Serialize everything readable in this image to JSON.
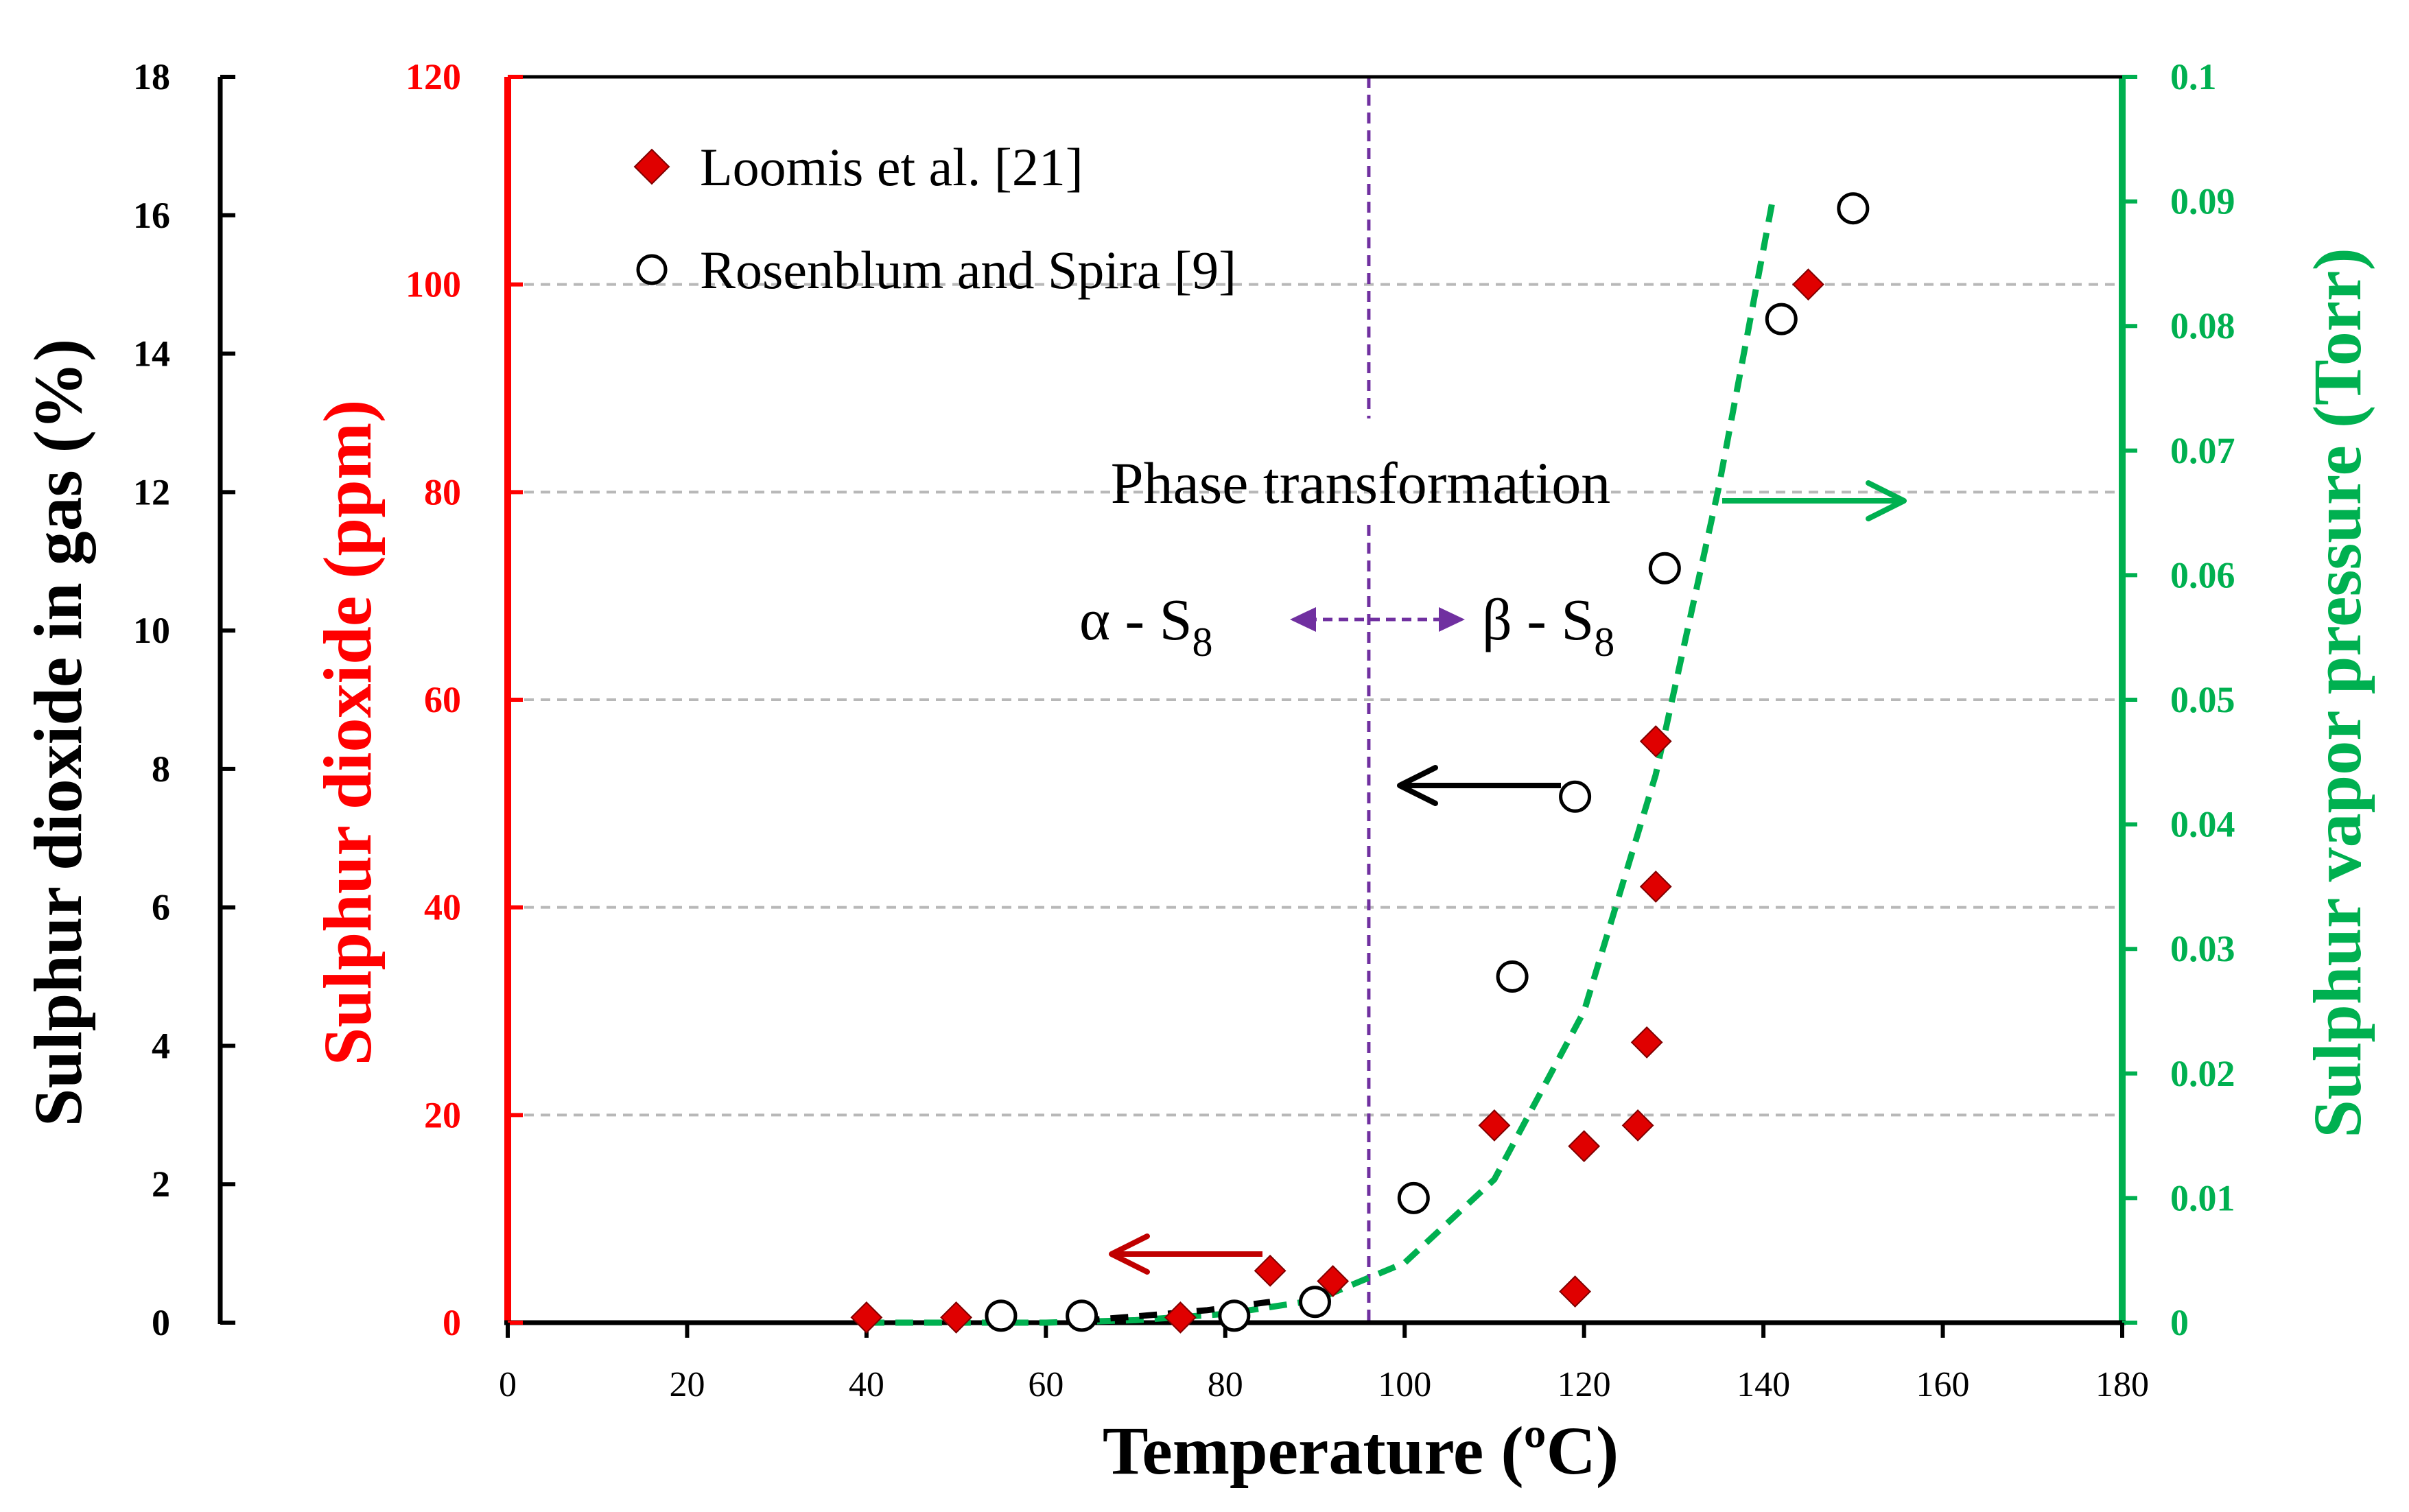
{
  "chart_data": {
    "type": "scatter",
    "xlabel": "Temperature (ºC)",
    "x_ticks": [
      "0",
      "20",
      "40",
      "60",
      "80",
      "100",
      "120",
      "140",
      "160",
      "180"
    ],
    "xlim": [
      0,
      180
    ],
    "y_axes": {
      "outer_left": {
        "label": "Sulphur dioxide in gas (%)",
        "ylim": [
          0,
          18
        ],
        "ticks": [
          "0",
          "2",
          "4",
          "6",
          "8",
          "10",
          "12",
          "14",
          "16",
          "18"
        ],
        "color": "#000000"
      },
      "left": {
        "label": "Sulphur dioxide (ppm)",
        "ylim": [
          0,
          120
        ],
        "ticks": [
          "0",
          "20",
          "40",
          "60",
          "80",
          "100",
          "120"
        ],
        "color": "#ff0000"
      },
      "right": {
        "label": "Sulphur vapor pressure (Torr)",
        "ylim": [
          0,
          0.1
        ],
        "ticks": [
          "0",
          "0.01",
          "0.02",
          "0.03",
          "0.04",
          "0.05",
          "0.06",
          "0.07",
          "0.08",
          "0.09",
          "0.1"
        ],
        "color": "#00b050"
      }
    },
    "gridlines_ppm": [
      20,
      40,
      60,
      80,
      100
    ],
    "series": [
      {
        "name": "Loomis et al. [21]",
        "marker": "diamond",
        "color": "#e00000",
        "axis": "left",
        "points": [
          [
            40,
            0.5
          ],
          [
            50,
            0.5
          ],
          [
            75,
            0.5
          ],
          [
            85,
            5
          ],
          [
            92,
            4
          ],
          [
            110,
            19
          ],
          [
            119,
            3
          ],
          [
            120,
            17
          ],
          [
            126,
            19
          ],
          [
            127,
            27
          ],
          [
            128,
            42
          ],
          [
            128,
            56
          ],
          [
            145,
            100
          ]
        ]
      },
      {
        "name": "Rosenblum and Spira [9]",
        "marker": "open-circle",
        "color": "#000000",
        "axis": "outer_left",
        "points": [
          [
            55,
            0.1
          ],
          [
            64,
            0.1
          ],
          [
            81,
            0.1
          ],
          [
            90,
            0.3
          ],
          [
            101,
            1.8
          ],
          [
            112,
            5.0
          ],
          [
            119,
            7.6
          ],
          [
            129,
            10.9
          ],
          [
            142,
            14.5
          ],
          [
            150,
            16.1
          ]
        ]
      },
      {
        "name": "",
        "marker": "dashed-line",
        "color": "#00b050",
        "axis": "right",
        "points": [
          [
            40,
            0
          ],
          [
            50,
            0
          ],
          [
            60,
            0
          ],
          [
            70,
            0.0002
          ],
          [
            80,
            0.0007
          ],
          [
            90,
            0.0018
          ],
          [
            100,
            0.0048
          ],
          [
            110,
            0.0115
          ],
          [
            120,
            0.025
          ],
          [
            128,
            0.044
          ],
          [
            135,
            0.067
          ],
          [
            141,
            0.09
          ]
        ]
      },
      {
        "name": "",
        "marker": "dashed-line",
        "color": "#000000",
        "axis": "left",
        "points": [
          [
            64,
            0.2
          ],
          [
            70,
            0.6
          ],
          [
            78,
            1.2
          ],
          [
            85,
            2.0
          ]
        ]
      }
    ],
    "annotations": {
      "phase_transition_x": 96,
      "phase_label": "Phase transformation",
      "alpha_label": "α - S",
      "beta_label": "β - S",
      "subscript": "8"
    },
    "legend_position": "top-left"
  }
}
